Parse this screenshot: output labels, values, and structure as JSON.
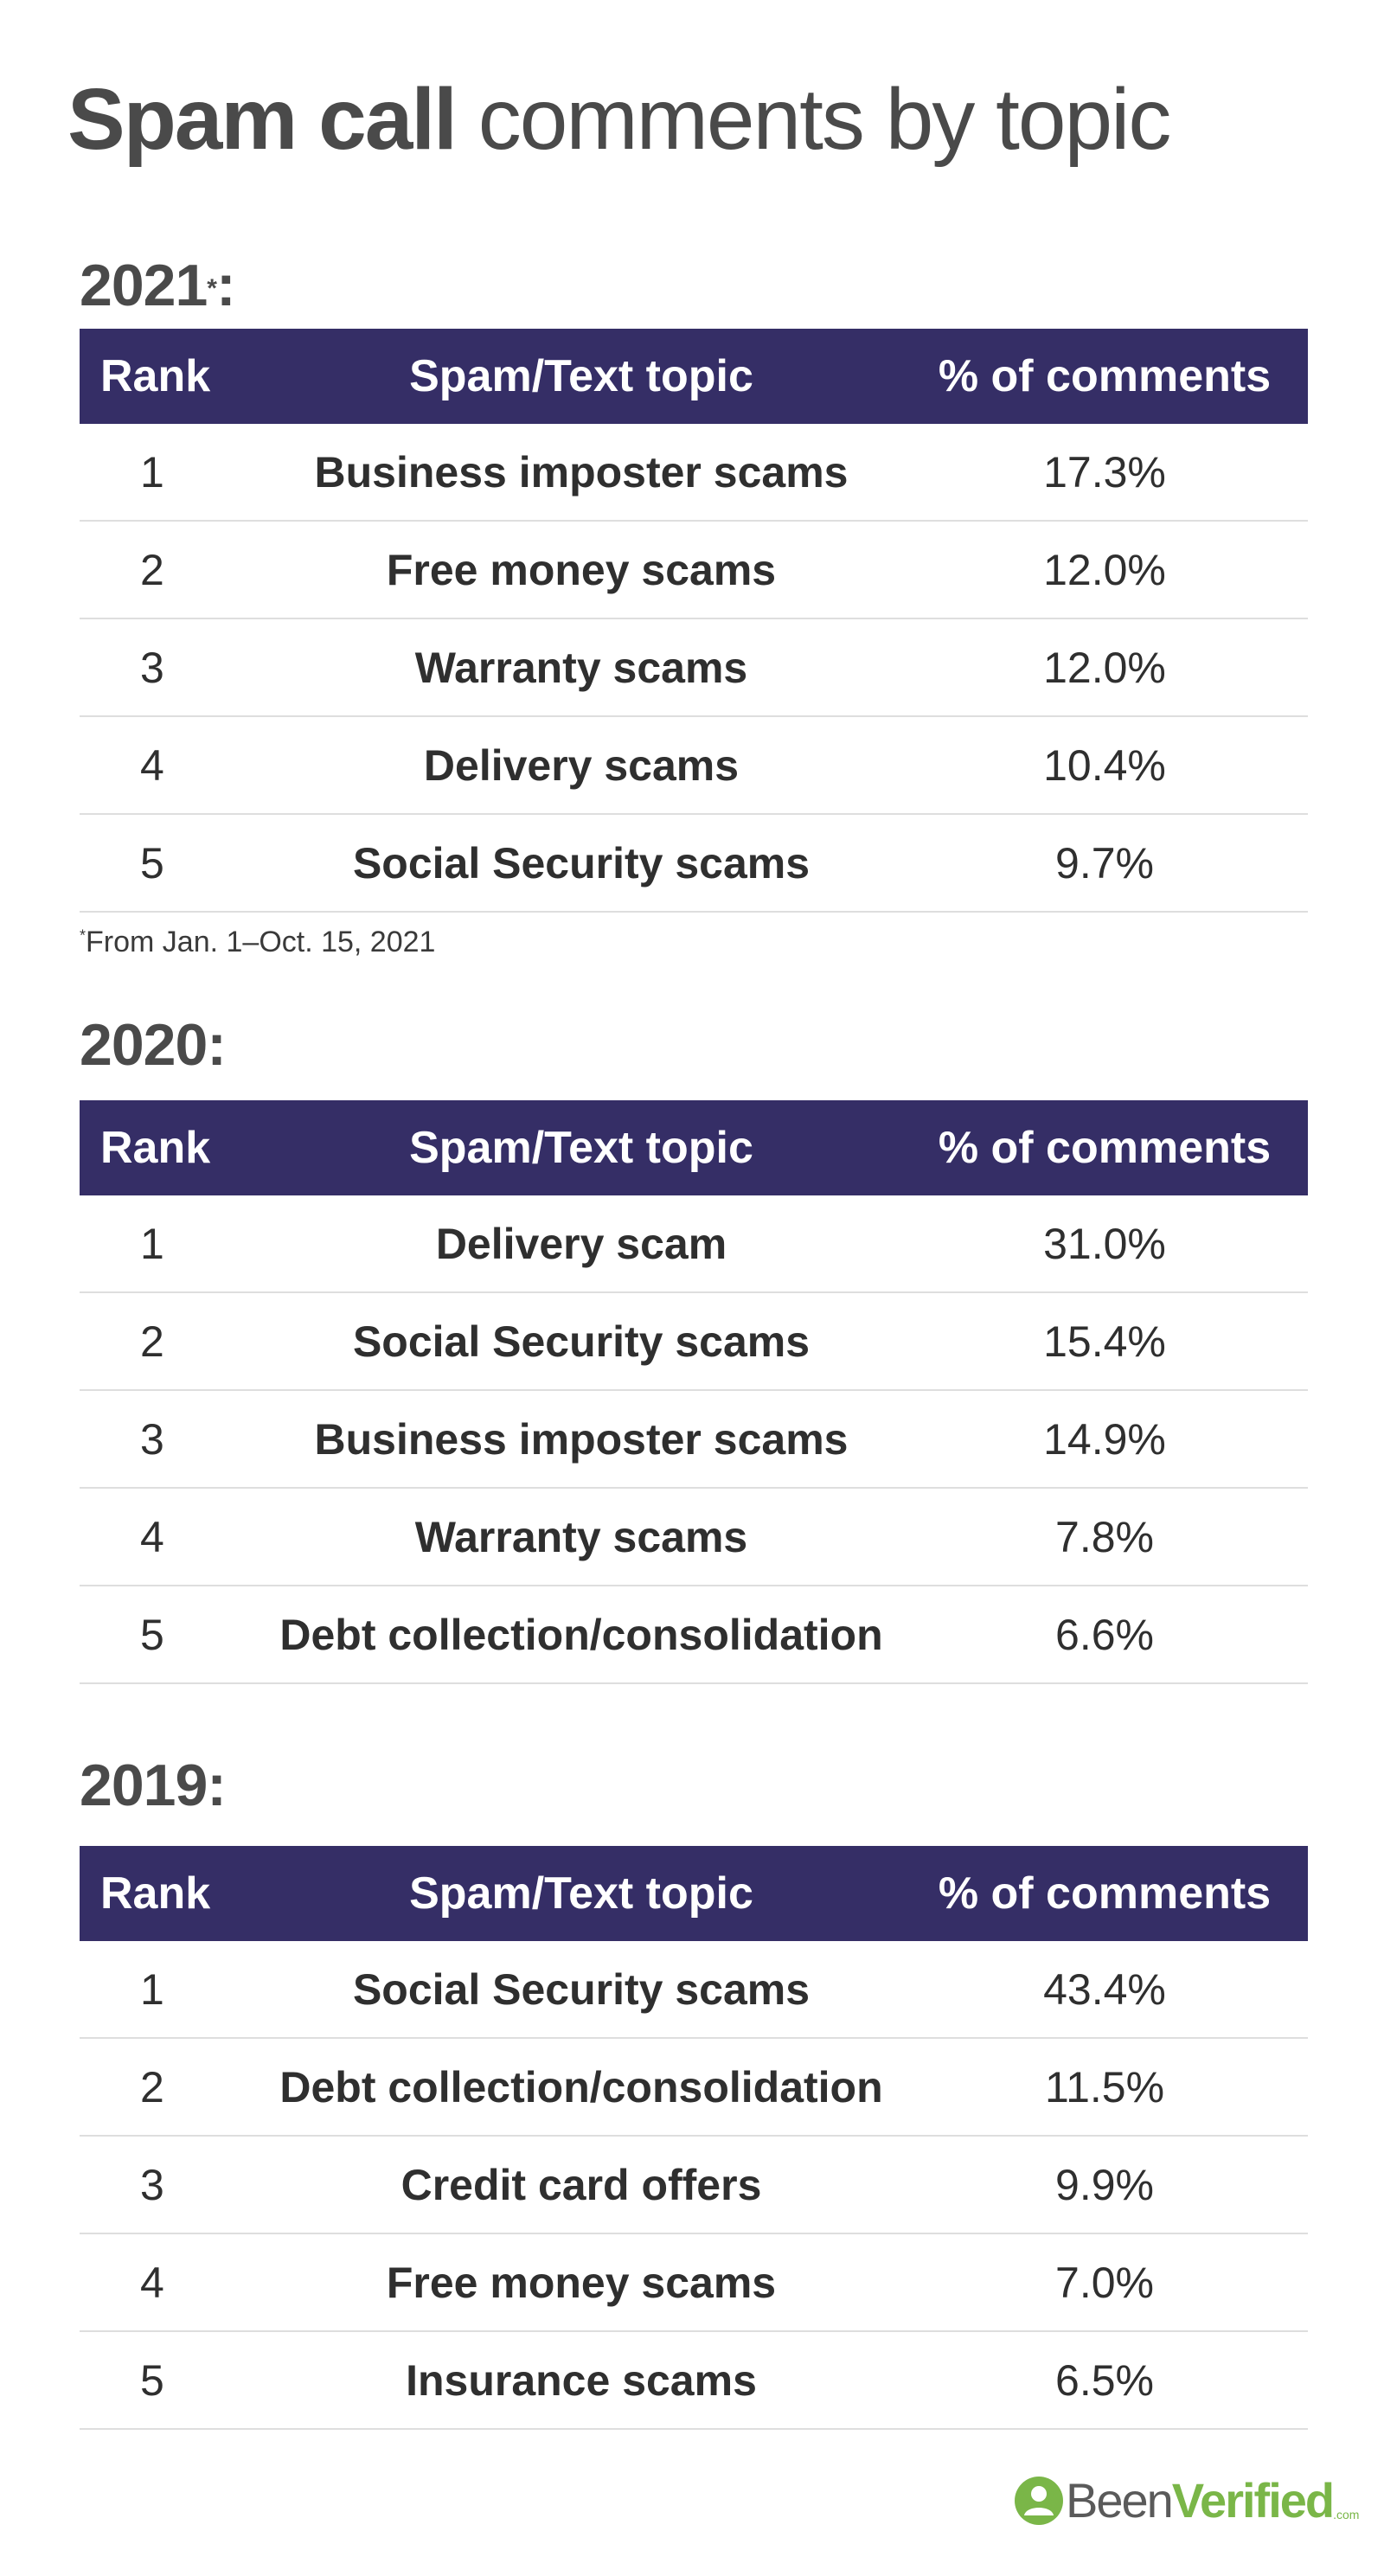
{
  "title": {
    "bold": "Spam call",
    "light": "comments by topic"
  },
  "header": {
    "rank": "Rank",
    "topic": "Spam/Text topic",
    "pct": "% of comments"
  },
  "footnote": {
    "mark": "*",
    "text": "From Jan. 1–Oct. 15, 2021"
  },
  "logo": {
    "been": "Been",
    "verified": "Verified",
    "com": ".com"
  },
  "colors": {
    "header_bg": "#352e66",
    "header_text": "#ffffff",
    "logo_green": "#7ab648"
  },
  "chart_data": [
    {
      "type": "table",
      "year_label": "2021",
      "year_mark": "*",
      "year_colon": ":",
      "columns": [
        "Rank",
        "Spam/Text topic",
        "% of comments"
      ],
      "rows": [
        {
          "rank": "1",
          "topic": "Business imposter scams",
          "pct": "17.3%"
        },
        {
          "rank": "2",
          "topic": "Free money scams",
          "pct": "12.0%"
        },
        {
          "rank": "3",
          "topic": "Warranty scams",
          "pct": "12.0%"
        },
        {
          "rank": "4",
          "topic": "Delivery scams",
          "pct": "10.4%"
        },
        {
          "rank": "5",
          "topic": "Social Security scams",
          "pct": "9.7%"
        }
      ]
    },
    {
      "type": "table",
      "year_label": "2020",
      "year_mark": "",
      "year_colon": ":",
      "columns": [
        "Rank",
        "Spam/Text topic",
        "% of comments"
      ],
      "rows": [
        {
          "rank": "1",
          "topic": "Delivery scam",
          "pct": "31.0%"
        },
        {
          "rank": "2",
          "topic": "Social Security scams",
          "pct": "15.4%"
        },
        {
          "rank": "3",
          "topic": "Business imposter scams",
          "pct": "14.9%"
        },
        {
          "rank": "4",
          "topic": "Warranty scams",
          "pct": "7.8%"
        },
        {
          "rank": "5",
          "topic": "Debt collection/consolidation",
          "pct": "6.6%"
        }
      ]
    },
    {
      "type": "table",
      "year_label": "2019",
      "year_mark": "",
      "year_colon": ":",
      "columns": [
        "Rank",
        "Spam/Text topic",
        "% of comments"
      ],
      "rows": [
        {
          "rank": "1",
          "topic": "Social Security scams",
          "pct": "43.4%"
        },
        {
          "rank": "2",
          "topic": "Debt collection/consolidation",
          "pct": "11.5%"
        },
        {
          "rank": "3",
          "topic": "Credit card offers",
          "pct": "9.9%"
        },
        {
          "rank": "4",
          "topic": "Free money scams",
          "pct": "7.0%"
        },
        {
          "rank": "5",
          "topic": "Insurance scams",
          "pct": "6.5%"
        }
      ]
    }
  ]
}
